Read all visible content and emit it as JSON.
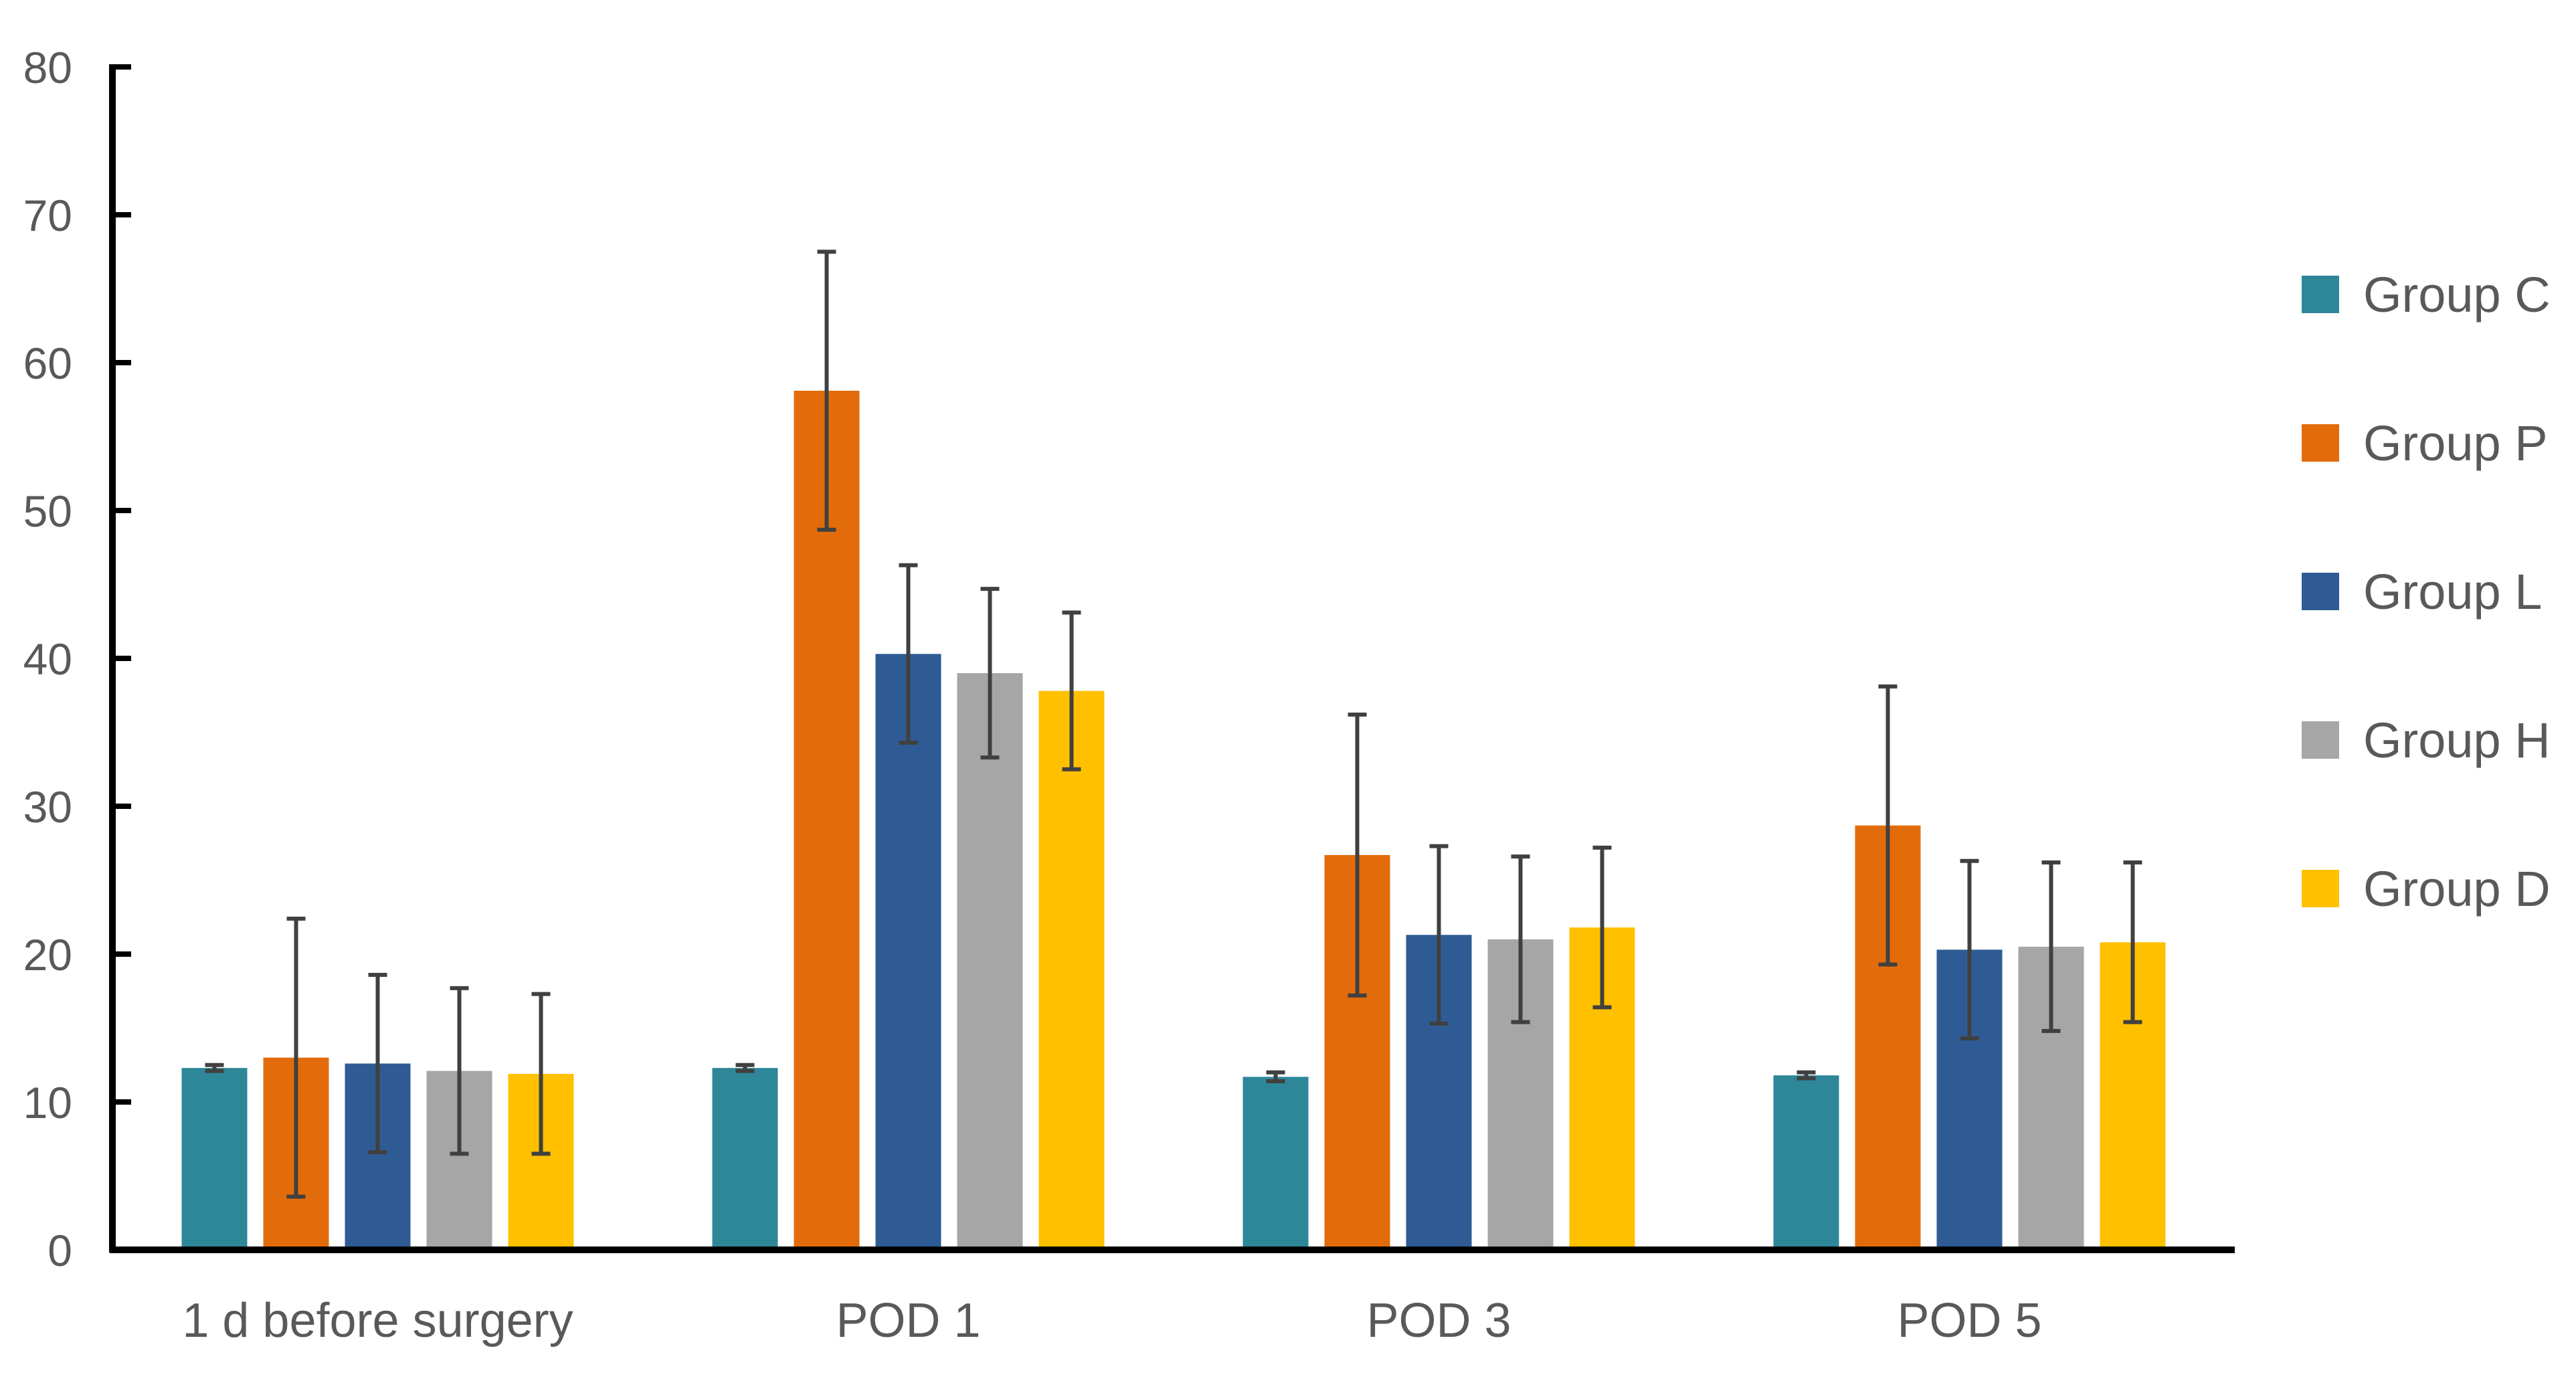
{
  "chart_data": {
    "type": "bar",
    "title": "",
    "xlabel": "",
    "ylabel": "",
    "ylim": [
      0,
      80
    ],
    "yticks": [
      0,
      10,
      20,
      30,
      40,
      50,
      60,
      70,
      80
    ],
    "ytick_labels": [
      "0",
      "10",
      "20",
      "30",
      "40",
      "50",
      "60",
      "70",
      "80"
    ],
    "grid": false,
    "legend_position": "right",
    "categories": [
      "1 d before surgery",
      "POD 1",
      "POD 3",
      "POD 5"
    ],
    "series": [
      {
        "name": "Group C",
        "color": "#2E8799",
        "values": [
          12.3,
          12.3,
          11.7,
          11.8
        ],
        "errors": [
          0.2,
          0.2,
          0.3,
          0.2
        ]
      },
      {
        "name": "Group P",
        "color": "#E36C0A",
        "values": [
          13.0,
          58.1,
          26.7,
          28.7
        ],
        "errors": [
          9.4,
          9.4,
          9.5,
          9.4
        ]
      },
      {
        "name": "Group L",
        "color": "#2F5B94",
        "values": [
          12.6,
          40.3,
          21.3,
          20.3
        ],
        "errors": [
          6.0,
          6.0,
          6.0,
          6.0
        ]
      },
      {
        "name": "Group H",
        "color": "#A6A6A6",
        "values": [
          12.1,
          39.0,
          21.0,
          20.5
        ],
        "errors": [
          5.6,
          5.7,
          5.6,
          5.7
        ]
      },
      {
        "name": "Group D",
        "color": "#FFC000",
        "values": [
          11.9,
          37.8,
          21.8,
          20.8
        ],
        "errors": [
          5.4,
          5.3,
          5.4,
          5.4
        ]
      }
    ]
  }
}
